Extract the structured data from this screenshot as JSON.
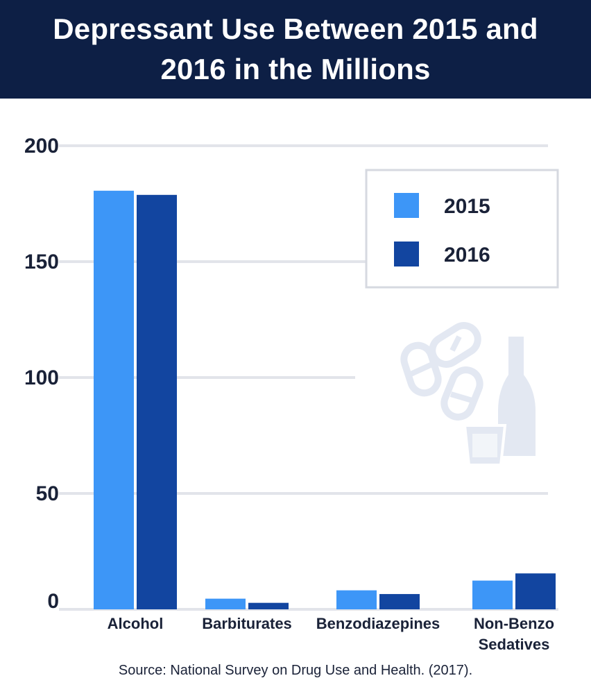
{
  "chart_data": {
    "type": "bar",
    "title": "Depressant Use Between 2015 and 2016 in the Millions",
    "categories": [
      [
        "Alcohol"
      ],
      [
        "Barbiturates"
      ],
      [
        "Benzodiazepines"
      ],
      [
        "Non-Benzo",
        "Sedatives"
      ]
    ],
    "series": [
      {
        "name": "2015",
        "values": [
          180.6,
          4.6,
          8.2,
          12.4
        ],
        "color": "#3d96f7"
      },
      {
        "name": "2016",
        "values": [
          178.8,
          2.8,
          6.6,
          15.5
        ],
        "color": "#1245a0"
      }
    ],
    "yticks": [
      0,
      50,
      100,
      150,
      200
    ],
    "ylim": [
      0,
      200
    ],
    "xlabel": "",
    "ylabel": "",
    "grid": true,
    "legend_position": "top-right",
    "decoration": "pills-and-bottle-illustration"
  },
  "source": "Source: National Survey on Drug Use and Health. (2017)."
}
